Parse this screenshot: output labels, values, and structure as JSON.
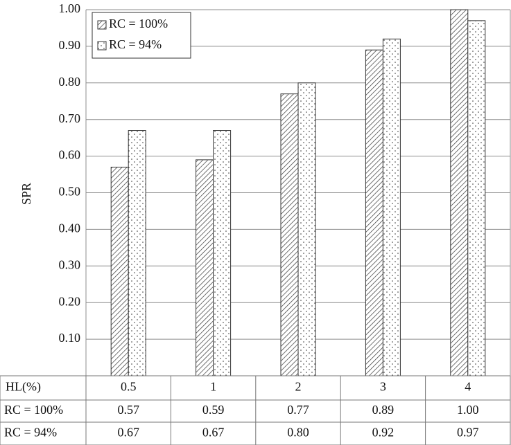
{
  "chart_data": {
    "type": "bar",
    "y_label": "SPR",
    "table_header": "HL(%)",
    "categories": [
      "0.5",
      "1",
      "2",
      "3",
      "4"
    ],
    "series": [
      {
        "name": "RC = 100%",
        "pattern": "hatch",
        "values": [
          0.57,
          0.59,
          0.77,
          0.89,
          1.0
        ],
        "value_labels": [
          "0.57",
          "0.59",
          "0.77",
          "0.89",
          "1.00"
        ]
      },
      {
        "name": "RC = 94%",
        "pattern": "dots",
        "values": [
          0.67,
          0.67,
          0.8,
          0.92,
          0.97
        ],
        "value_labels": [
          "0.67",
          "0.67",
          "0.80",
          "0.92",
          "0.97"
        ]
      }
    ],
    "ylim": [
      0,
      1
    ],
    "yticks": [
      {
        "value": 0.1,
        "label": "0.10"
      },
      {
        "value": 0.2,
        "label": "0.20"
      },
      {
        "value": 0.3,
        "label": "0.30"
      },
      {
        "value": 0.4,
        "label": "0.40"
      },
      {
        "value": 0.5,
        "label": "0.50"
      },
      {
        "value": 0.6,
        "label": "0.60"
      },
      {
        "value": 0.7,
        "label": "0.70"
      },
      {
        "value": 0.8,
        "label": "0.80"
      },
      {
        "value": 0.9,
        "label": "0.90"
      },
      {
        "value": 1.0,
        "label": "1.00"
      }
    ],
    "grid": true,
    "legend": "top-left"
  }
}
